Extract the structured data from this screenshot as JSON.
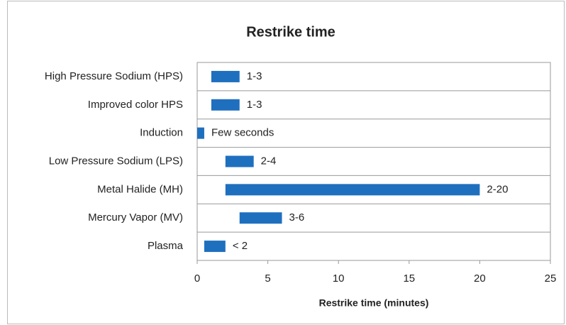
{
  "chart_data": {
    "type": "floating_bar",
    "title": "Restrike time",
    "x_label": "Restrike time (minutes)",
    "categories": [
      "High Pressure Sodium (HPS)",
      "Improved color HPS",
      "Induction",
      "Low Pressure Sodium (LPS)",
      "Metal Halide (MH)",
      "Mercury Vapor (MV)",
      "Plasma"
    ],
    "starts": [
      1,
      1,
      0,
      2,
      2,
      3,
      0.5
    ],
    "ends": [
      3,
      3,
      0.5,
      4,
      20,
      6,
      2
    ],
    "value_labels": [
      "1-3",
      "1-3",
      "Few seconds",
      "2-4",
      "2-20",
      "3-6",
      "< 2"
    ],
    "color": "#1f6fbf",
    "xlim": [
      0,
      25
    ],
    "xticks": [
      0,
      5,
      10,
      15,
      20,
      25
    ]
  }
}
